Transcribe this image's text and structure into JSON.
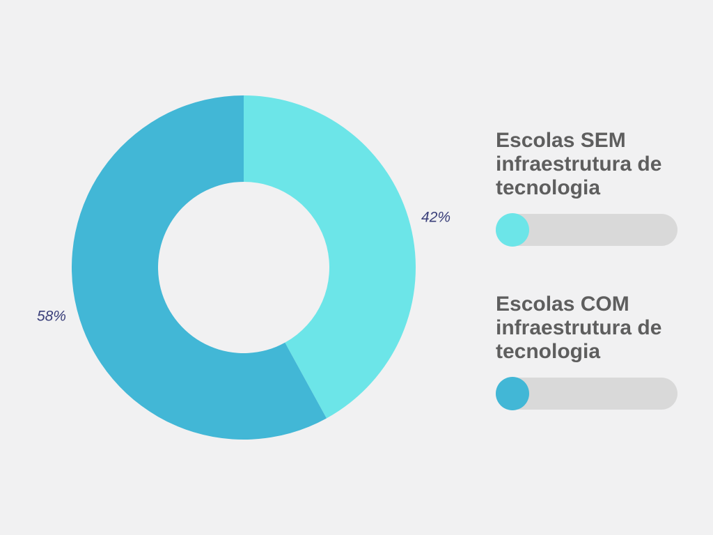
{
  "chart_data": {
    "type": "donut",
    "categories": [
      "Escolas SEM infraestrutura de tecnologia",
      "Escolas COM infraestrutura de tecnologia"
    ],
    "values": [
      42,
      58
    ],
    "value_labels": [
      "42%",
      "58%"
    ],
    "colors": [
      "#6ce5e8",
      "#42b7d6"
    ]
  }
}
